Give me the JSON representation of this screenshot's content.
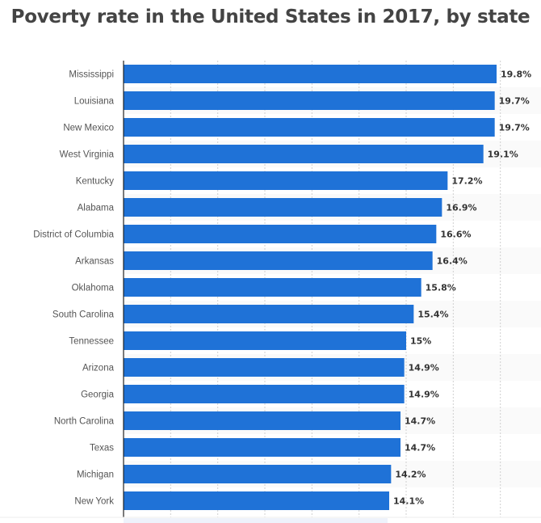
{
  "chart_data": {
    "type": "bar",
    "orientation": "horizontal",
    "title": "Poverty rate in the United States in 2017, by state",
    "categories": [
      "Mississippi",
      "Louisiana",
      "New Mexico",
      "West Virginia",
      "Kentucky",
      "Alabama",
      "District of Columbia",
      "Arkansas",
      "Oklahoma",
      "South Carolina",
      "Tennessee",
      "Arizona",
      "Georgia",
      "North Carolina",
      "Texas",
      "Michigan",
      "New York"
    ],
    "values": [
      19.8,
      19.7,
      19.7,
      19.1,
      17.2,
      16.9,
      16.6,
      16.4,
      15.8,
      15.4,
      15,
      14.9,
      14.9,
      14.7,
      14.7,
      14.2,
      14.1
    ],
    "data_labels": [
      "19.8%",
      "19.7%",
      "19.7%",
      "19.1%",
      "17.2%",
      "16.9%",
      "16.6%",
      "16.4%",
      "15.8%",
      "15.4%",
      "15%",
      "14.9%",
      "14.9%",
      "14.7%",
      "14.7%",
      "14.2%",
      "14.1%"
    ],
    "xlabel": "",
    "ylabel": "",
    "xlim": [
      0,
      22.5
    ],
    "grid": true,
    "bar_color": "#1f72d7"
  }
}
